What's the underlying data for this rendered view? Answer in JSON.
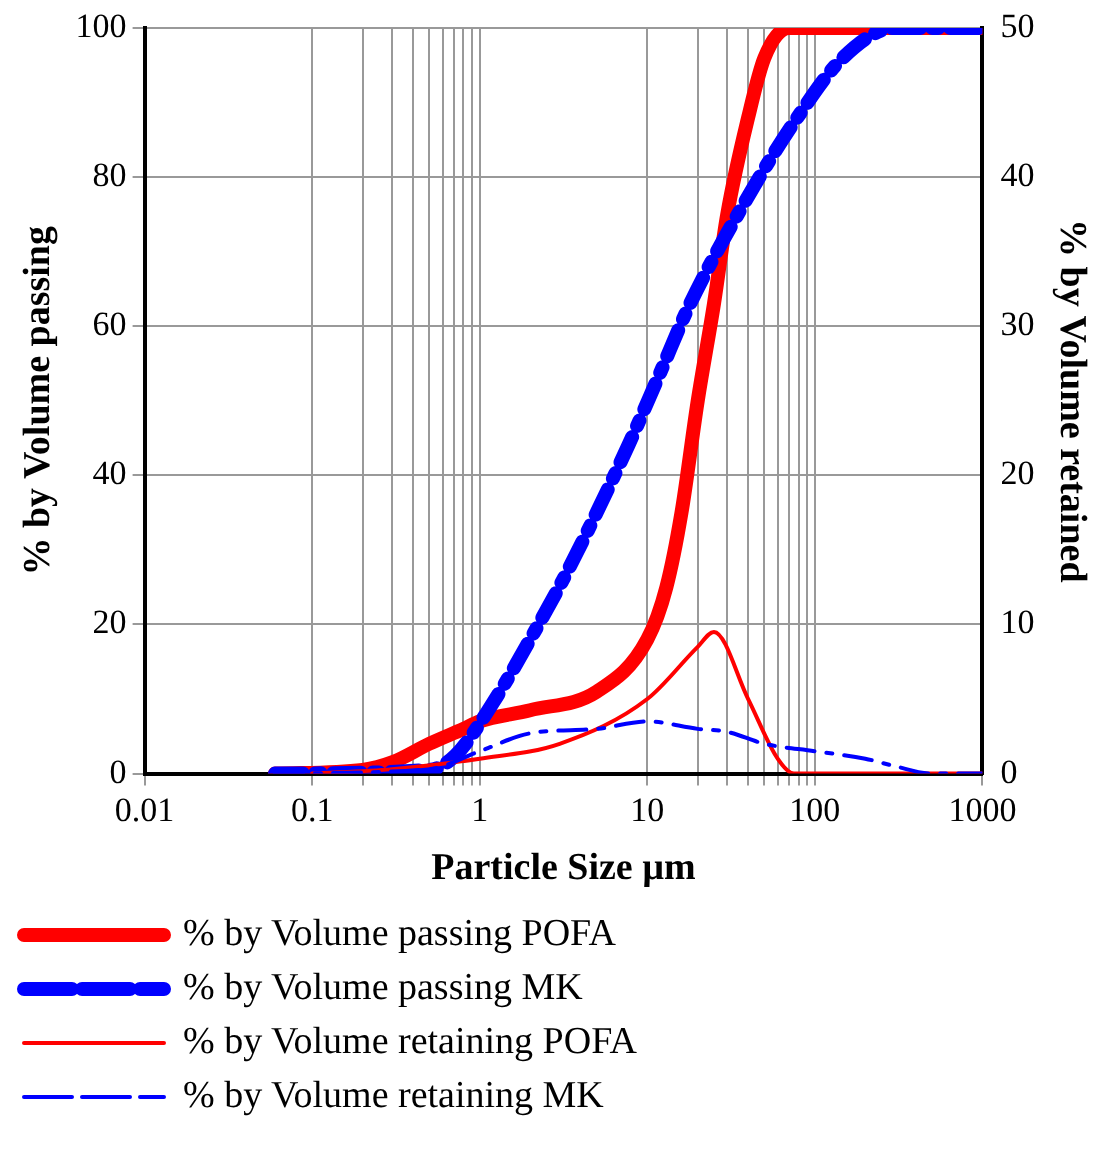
{
  "chart_data": {
    "type": "line",
    "xlabel": "Particle Size µm",
    "ylabel": "% by Volume passing",
    "y2label": "% by Volume retained",
    "log": "x",
    "grid": true,
    "legend": "bottom",
    "marker": "none",
    "xlim": [
      0.01,
      1000
    ],
    "xticks": [
      0.01,
      0.1,
      {
        "value": 0.2,
        "label": null
      },
      {
        "value": 0.3,
        "label": null
      },
      {
        "value": 0.4,
        "label": null
      },
      {
        "value": 0.5,
        "label": null
      },
      {
        "value": 0.6,
        "label": null
      },
      {
        "value": 0.7,
        "label": null
      },
      {
        "value": 0.8,
        "label": null
      },
      {
        "value": 0.9,
        "label": null
      },
      1,
      10,
      {
        "value": 20,
        "label": null
      },
      {
        "value": 30,
        "label": null
      },
      {
        "value": 40,
        "label": null
      },
      {
        "value": 50,
        "label": null
      },
      {
        "value": 60,
        "label": null
      },
      {
        "value": 70,
        "label": null
      },
      {
        "value": 80,
        "label": null
      },
      {
        "value": 90,
        "label": null
      },
      100,
      1000
    ],
    "ylim": [
      0,
      100
    ],
    "yticks": [
      0,
      20,
      40,
      60,
      80,
      100
    ],
    "y2lim": [
      0,
      50
    ],
    "y2ticks": [
      0,
      10,
      20,
      30,
      40,
      50
    ],
    "series": [
      {
        "name": "% by Volume passing POFA",
        "color": "#ff0000",
        "line_style": "solid",
        "x": [
          0.06,
          0.2,
          0.3,
          0.5,
          0.8,
          1,
          2,
          5,
          10,
          13,
          16,
          20,
          25,
          30,
          40,
          50,
          70,
          1000
        ],
        "values": [
          0,
          0.5,
          1.5,
          4,
          6,
          7,
          8.5,
          11,
          18,
          25,
          35,
          50,
          63,
          75,
          88,
          96,
          100,
          100
        ]
      },
      {
        "name": "% by Volume passing MK",
        "color": "#0000ff",
        "line_style": "dashed",
        "x": [
          0.06,
          0.5,
          0.72,
          1.2,
          2,
          3.4,
          7.7,
          11.8,
          18,
          44,
          76,
          147,
          300,
          1000
        ],
        "values": [
          0,
          0.5,
          2.5,
          9.5,
          18,
          27.5,
          44,
          53.5,
          63,
          79,
          87.5,
          96,
          100,
          100
        ]
      },
      {
        "name": "% by Volume retaining POFA",
        "color": "#ff0000",
        "line_style": "solid",
        "axis": "y2",
        "x": [
          0.1,
          0.3,
          1,
          3,
          10,
          20,
          25,
          40,
          60,
          75,
          1000
        ],
        "values": [
          0,
          0.3,
          1,
          2,
          5,
          8.5,
          9.5,
          5,
          1,
          0,
          0
        ]
      },
      {
        "name": "% by Volume retaining MK",
        "color": "#0000ff",
        "line_style": "dashed",
        "axis": "y2",
        "x": [
          0.06,
          0.5,
          1,
          2,
          5,
          10,
          20,
          30,
          50,
          100,
          200,
          300,
          500,
          1000
        ],
        "values": [
          0,
          0.3,
          1.5,
          2.7,
          3,
          3.5,
          3,
          2.8,
          2,
          1.5,
          1,
          0.5,
          0,
          0
        ]
      }
    ]
  }
}
